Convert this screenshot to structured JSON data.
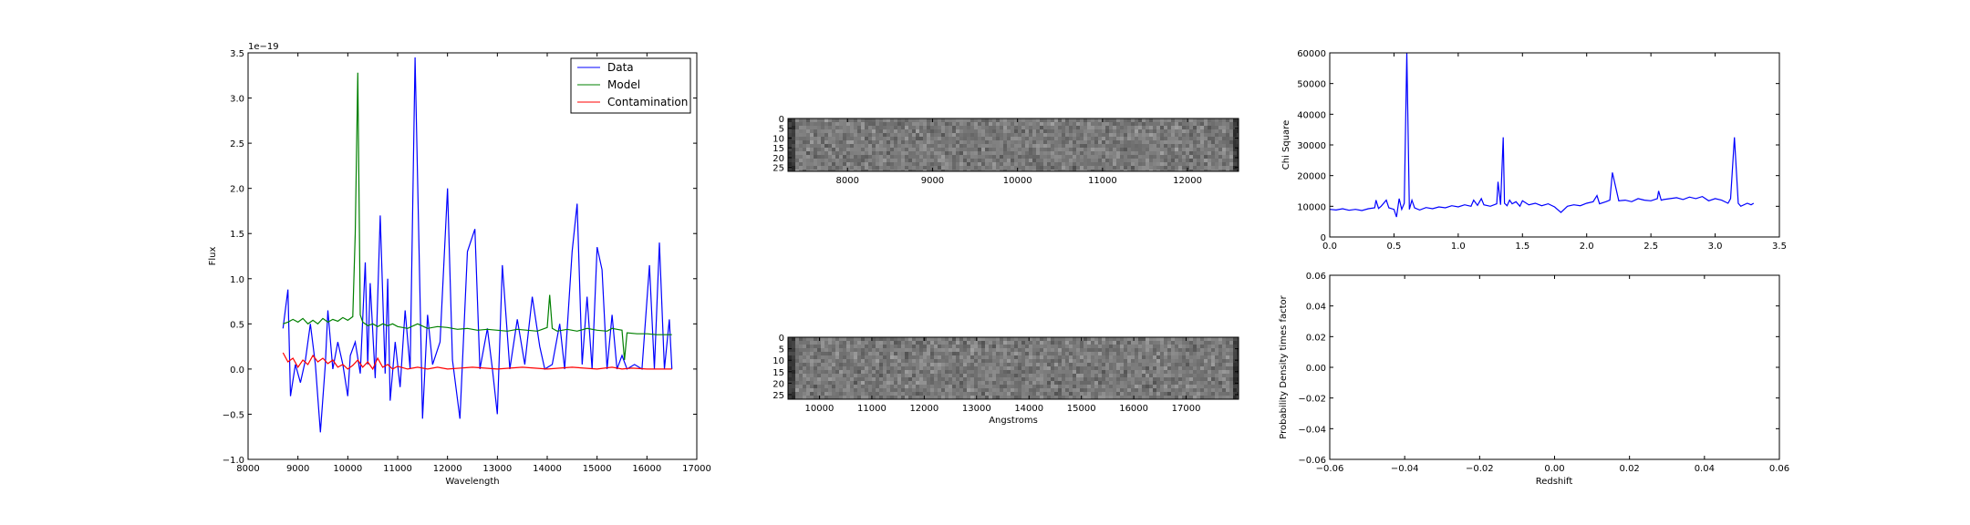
{
  "colors": {
    "data": "#0000ff",
    "model": "#008000",
    "contamination": "#ff0000",
    "axes": "#000000",
    "background": "#ffffff"
  },
  "chart_data": [
    {
      "type": "line",
      "panel": "spectrum",
      "xlabel": "Wavelength",
      "ylabel": "Flux",
      "offset_text": "1e−19",
      "xlim": [
        8000,
        17000
      ],
      "ylim": [
        -1.0,
        3.5
      ],
      "xticks": [
        8000,
        9000,
        10000,
        11000,
        12000,
        13000,
        14000,
        15000,
        16000,
        17000
      ],
      "yticks": [
        -1.0,
        -0.5,
        0.0,
        0.5,
        1.0,
        1.5,
        2.0,
        2.5,
        3.0,
        3.5
      ],
      "xtick_labels": [
        "8000",
        "9000",
        "10000",
        "11000",
        "12000",
        "13000",
        "14000",
        "15000",
        "16000",
        "17000"
      ],
      "ytick_labels": [
        "−1.0",
        "−0.5",
        "0.0",
        "0.5",
        "1.0",
        "1.5",
        "2.0",
        "2.5",
        "3.0",
        "3.5"
      ],
      "legend": {
        "placement": "upper right",
        "entries": [
          "Data",
          "Model",
          "Contamination"
        ]
      },
      "series": [
        {
          "name": "Data",
          "color_key": "data",
          "x": [
            8700,
            8800,
            8850,
            8950,
            9050,
            9150,
            9250,
            9350,
            9450,
            9550,
            9600,
            9700,
            9800,
            9900,
            10000,
            10050,
            10150,
            10250,
            10350,
            10400,
            10450,
            10550,
            10650,
            10750,
            10800,
            10850,
            10950,
            11050,
            11150,
            11250,
            11350,
            11500,
            11600,
            11700,
            11850,
            12000,
            12100,
            12250,
            12400,
            12550,
            12650,
            12800,
            12900,
            13000,
            13100,
            13250,
            13400,
            13550,
            13700,
            13850,
            13950,
            14100,
            14250,
            14350,
            14500,
            14600,
            14700,
            14800,
            14900,
            15000,
            15100,
            15200,
            15300,
            15400,
            15500,
            15600,
            15750,
            15900,
            16050,
            16150,
            16250,
            16350,
            16450,
            16500
          ],
          "y": [
            0.45,
            0.88,
            -0.3,
            0.05,
            -0.15,
            0.1,
            0.5,
            0.05,
            -0.7,
            0.05,
            0.65,
            0.0,
            0.3,
            0.05,
            -0.3,
            0.15,
            0.3,
            -0.05,
            1.18,
            0.05,
            0.95,
            -0.1,
            1.7,
            -0.05,
            1.0,
            -0.35,
            0.3,
            -0.2,
            0.65,
            0.0,
            3.45,
            -0.55,
            0.6,
            0.05,
            0.3,
            2.0,
            0.1,
            -0.55,
            1.3,
            1.55,
            0.0,
            0.45,
            0.0,
            -0.5,
            1.15,
            0.0,
            0.55,
            0.05,
            0.8,
            0.25,
            0.0,
            0.05,
            0.5,
            0.0,
            1.3,
            1.83,
            0.05,
            0.8,
            0.0,
            1.35,
            1.1,
            0.0,
            0.6,
            0.0,
            0.15,
            0.0,
            0.05,
            0.0,
            1.15,
            0.0,
            1.4,
            0.0,
            0.55,
            0.0
          ]
        },
        {
          "name": "Model",
          "color_key": "model",
          "x": [
            8700,
            8800,
            8900,
            9000,
            9100,
            9200,
            9300,
            9400,
            9500,
            9600,
            9700,
            9800,
            9900,
            10000,
            10100,
            10150,
            10200,
            10250,
            10300,
            10400,
            10500,
            10600,
            10700,
            10800,
            10900,
            11000,
            11200,
            11400,
            11600,
            11800,
            12000,
            12200,
            12400,
            12600,
            12800,
            13000,
            13200,
            13400,
            13600,
            13800,
            14000,
            14050,
            14100,
            14200,
            14400,
            14600,
            14800,
            15000,
            15200,
            15300,
            15400,
            15500,
            15550,
            15600,
            15800,
            16000,
            16200,
            16500
          ],
          "y": [
            0.5,
            0.52,
            0.55,
            0.52,
            0.56,
            0.5,
            0.54,
            0.5,
            0.56,
            0.52,
            0.55,
            0.53,
            0.57,
            0.54,
            0.58,
            1.5,
            3.28,
            0.6,
            0.52,
            0.48,
            0.5,
            0.47,
            0.5,
            0.48,
            0.5,
            0.47,
            0.45,
            0.5,
            0.45,
            0.47,
            0.46,
            0.44,
            0.45,
            0.43,
            0.44,
            0.43,
            0.42,
            0.44,
            0.43,
            0.42,
            0.46,
            0.82,
            0.45,
            0.42,
            0.44,
            0.42,
            0.45,
            0.43,
            0.42,
            0.45,
            0.44,
            0.43,
            0.1,
            0.4,
            0.39,
            0.39,
            0.38,
            0.38
          ]
        },
        {
          "name": "Contamination",
          "color_key": "contamination",
          "x": [
            8700,
            8800,
            8900,
            9000,
            9100,
            9200,
            9300,
            9400,
            9500,
            9600,
            9700,
            9800,
            9900,
            10000,
            10100,
            10200,
            10300,
            10400,
            10500,
            10600,
            10700,
            10800,
            10900,
            11000,
            11200,
            11400,
            11600,
            11800,
            12000,
            12500,
            13000,
            13500,
            14000,
            14500,
            15000,
            15300,
            15500,
            15700,
            16000,
            16500
          ],
          "y": [
            0.18,
            0.08,
            0.12,
            0.02,
            0.1,
            0.05,
            0.15,
            0.08,
            0.12,
            0.06,
            0.1,
            0.02,
            0.05,
            0.0,
            0.04,
            0.1,
            0.02,
            0.08,
            0.0,
            0.12,
            0.02,
            0.05,
            0.0,
            0.03,
            0.0,
            0.02,
            0.0,
            0.02,
            0.0,
            0.02,
            0.0,
            0.02,
            0.0,
            0.02,
            0.0,
            0.02,
            0.0,
            0.01,
            0.0,
            0.0
          ]
        }
      ]
    },
    {
      "type": "heatmap",
      "panel": "stamp-top",
      "xlim": [
        7300,
        12600
      ],
      "ylim": [
        27,
        0
      ],
      "xticks": [
        8000,
        9000,
        10000,
        11000,
        12000
      ],
      "yticks": [
        0,
        5,
        10,
        15,
        20,
        25
      ],
      "xtick_labels": [
        "8000",
        "9000",
        "10000",
        "11000",
        "12000"
      ],
      "ytick_labels": [
        "0",
        "5",
        "10",
        "15",
        "20",
        "25"
      ],
      "colormap": "gray"
    },
    {
      "type": "heatmap",
      "panel": "stamp-bottom",
      "xlabel": "Angstroms",
      "xlim": [
        9400,
        18000
      ],
      "ylim": [
        27,
        0
      ],
      "xticks": [
        10000,
        11000,
        12000,
        13000,
        14000,
        15000,
        16000,
        17000
      ],
      "yticks": [
        0,
        5,
        10,
        15,
        20,
        25
      ],
      "xtick_labels": [
        "10000",
        "11000",
        "12000",
        "13000",
        "14000",
        "15000",
        "16000",
        "17000"
      ],
      "ytick_labels": [
        "0",
        "5",
        "10",
        "15",
        "20",
        "25"
      ],
      "colormap": "gray"
    },
    {
      "type": "line",
      "panel": "chisq",
      "ylabel": "Chi Square",
      "xlim": [
        0.0,
        3.5
      ],
      "ylim": [
        0,
        60000
      ],
      "xticks": [
        0.0,
        0.5,
        1.0,
        1.5,
        2.0,
        2.5,
        3.0,
        3.5
      ],
      "yticks": [
        0,
        10000,
        20000,
        30000,
        40000,
        50000,
        60000
      ],
      "xtick_labels": [
        "0.0",
        "0.5",
        "1.0",
        "1.5",
        "2.0",
        "2.5",
        "3.0",
        "3.5"
      ],
      "ytick_labels": [
        "0",
        "10000",
        "20000",
        "30000",
        "40000",
        "50000",
        "60000"
      ],
      "series": [
        {
          "color_key": "data",
          "x": [
            0.0,
            0.05,
            0.1,
            0.15,
            0.2,
            0.25,
            0.3,
            0.35,
            0.36,
            0.38,
            0.4,
            0.44,
            0.46,
            0.5,
            0.52,
            0.54,
            0.56,
            0.58,
            0.6,
            0.62,
            0.64,
            0.66,
            0.7,
            0.75,
            0.8,
            0.85,
            0.9,
            0.95,
            1.0,
            1.05,
            1.1,
            1.12,
            1.15,
            1.18,
            1.2,
            1.25,
            1.3,
            1.31,
            1.33,
            1.35,
            1.36,
            1.38,
            1.4,
            1.42,
            1.45,
            1.48,
            1.5,
            1.55,
            1.6,
            1.65,
            1.7,
            1.75,
            1.8,
            1.85,
            1.9,
            1.95,
            2.0,
            2.05,
            2.08,
            2.1,
            2.15,
            2.18,
            2.2,
            2.25,
            2.3,
            2.35,
            2.4,
            2.45,
            2.5,
            2.55,
            2.56,
            2.58,
            2.6,
            2.65,
            2.7,
            2.75,
            2.8,
            2.85,
            2.9,
            2.95,
            3.0,
            3.05,
            3.1,
            3.12,
            3.15,
            3.18,
            3.2,
            3.25,
            3.28,
            3.3
          ],
          "y": [
            9000,
            8800,
            9200,
            8700,
            9000,
            8600,
            9200,
            9500,
            12000,
            9300,
            10000,
            12000,
            9500,
            9000,
            6500,
            12500,
            9000,
            11000,
            60000,
            9000,
            12000,
            9500,
            8800,
            9600,
            9200,
            9800,
            9500,
            10200,
            9800,
            10500,
            10000,
            12000,
            10300,
            12500,
            10500,
            10000,
            10800,
            18000,
            10500,
            32500,
            11000,
            10200,
            12000,
            10800,
            11500,
            10000,
            11800,
            10500,
            11000,
            10200,
            10800,
            9800,
            8000,
            10000,
            10500,
            10200,
            11000,
            11500,
            13500,
            10800,
            11500,
            12000,
            21000,
            11800,
            12000,
            11500,
            12500,
            12000,
            11800,
            12500,
            15000,
            12000,
            12200,
            12500,
            12800,
            12200,
            13000,
            12500,
            13200,
            11800,
            12500,
            12000,
            11000,
            12500,
            32500,
            11000,
            10000,
            11000,
            10500,
            11000
          ]
        }
      ]
    },
    {
      "type": "line",
      "panel": "pdf",
      "xlabel": "Redshift",
      "ylabel": "Probability Density times factor",
      "xlim": [
        -0.06,
        0.06
      ],
      "ylim": [
        -0.06,
        0.06
      ],
      "xticks": [
        -0.06,
        -0.04,
        -0.02,
        0.0,
        0.02,
        0.04,
        0.06
      ],
      "yticks": [
        -0.06,
        -0.04,
        -0.02,
        0.0,
        0.02,
        0.04,
        0.06
      ],
      "xtick_labels": [
        "−0.06",
        "−0.04",
        "−0.02",
        "0.00",
        "0.02",
        "0.04",
        "0.06"
      ],
      "ytick_labels": [
        "−0.06",
        "−0.04",
        "−0.02",
        "0.00",
        "0.02",
        "0.04",
        "0.06"
      ],
      "series": []
    }
  ]
}
